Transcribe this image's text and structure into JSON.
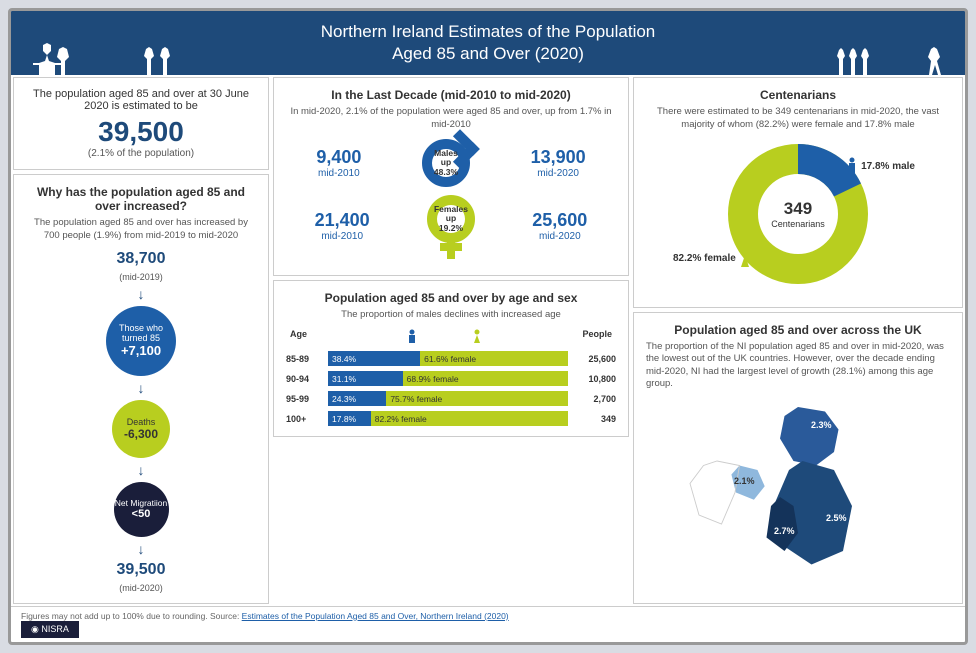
{
  "header": {
    "title_line1": "Northern Ireland Estimates of the Population",
    "title_line2": "Aged 85 and Over (2020)"
  },
  "colors": {
    "blue": "#1e5fa8",
    "green": "#b8ce1f",
    "dark": "#1a1e3a",
    "header_bg": "#1e4a7a"
  },
  "left": {
    "estimate": {
      "title": "The population aged 85 and over at 30 June 2020 is estimated to be",
      "value": "39,500",
      "sub": "(2.1% of the population)"
    },
    "why": {
      "title": "Why has the population aged 85 and over increased?",
      "sub": "The population aged 85 and over has increased by 700 people (1.9%) from mid-2019 to mid-2020",
      "start_val": "38,700",
      "start_lbl": "(mid-2019)",
      "turned85_lbl": "Those who turned 85",
      "turned85_val": "+7,100",
      "deaths_lbl": "Deaths",
      "deaths_val": "-6,300",
      "migration_lbl": "Net Migratiion",
      "migration_val": "<50",
      "end_val": "39,500",
      "end_lbl": "(mid-2020)"
    }
  },
  "mid": {
    "decade": {
      "title": "In the Last Decade (mid-2010 to mid-2020)",
      "sub": "In mid-2020, 2.1% of the population were aged 85 and over, up from 1.7% in mid-2010",
      "male_2010": "9,400",
      "male_2020": "13,900",
      "male_caption": "Males up 48.3%",
      "female_2010": "21,400",
      "female_2020": "25,600",
      "female_caption": "Females up 19.2%",
      "lbl_2010": "mid-2010",
      "lbl_2020": "mid-2020"
    },
    "agesex": {
      "title": "Population aged 85 and over by age and sex",
      "sub": "The proportion of males declines with increased age",
      "col_age": "Age",
      "col_people": "People",
      "rows": [
        {
          "age": "85-89",
          "m": 38.4,
          "m_lbl": "38.4%",
          "f": 61.6,
          "f_lbl": "61.6% female",
          "people": "25,600"
        },
        {
          "age": "90-94",
          "m": 31.1,
          "m_lbl": "31.1%",
          "f": 68.9,
          "f_lbl": "68.9% female",
          "people": "10,800"
        },
        {
          "age": "95-99",
          "m": 24.3,
          "m_lbl": "24.3%",
          "f": 75.7,
          "f_lbl": "75.7% female",
          "people": "2,700"
        },
        {
          "age": "100+",
          "m": 17.8,
          "m_lbl": "17.8%",
          "f": 82.2,
          "f_lbl": "82.2% female",
          "people": "349"
        }
      ]
    }
  },
  "right": {
    "cent": {
      "title": "Centenarians",
      "sub": "There were estimated to be 349 centenarians in mid-2020, the vast majority of whom (82.2%) were female and 17.8% male",
      "num": "349",
      "lbl": "Centenarians",
      "female_pct": 82.2,
      "female_lbl": "82.2% female",
      "male_pct": 17.8,
      "male_lbl": "17.8% male"
    },
    "uk": {
      "title": "Population aged 85 and over across the UK",
      "sub": "The proportion of the NI population aged 85 and over in mid-2020, was the lowest out of the UK countries. However, over the decade ending mid-2020, NI had the largest level of growth (28.1%) among this age group.",
      "scotland": "2.3%",
      "ni": "2.1%",
      "wales": "2.7%",
      "england": "2.5%"
    }
  },
  "footer": {
    "text": "Figures may not add up to 100% due to rounding. Source: ",
    "link": "Estimates of the Population Aged 85 and Over, Northern Ireland (2020)",
    "logo": "NISRA"
  }
}
